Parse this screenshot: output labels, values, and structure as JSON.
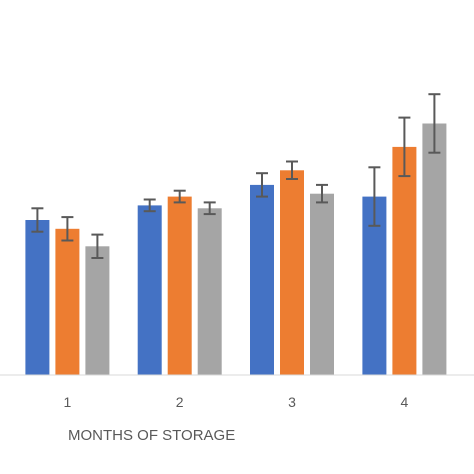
{
  "chart_data": {
    "type": "bar",
    "title": "",
    "xlabel": "MONTHS OF STORAGE",
    "ylabel": "",
    "categories": [
      "1",
      "2",
      "3",
      "4"
    ],
    "ylim": [
      0,
      100
    ],
    "grid": false,
    "legend": "none visible",
    "series": [
      {
        "color": "#4472C4",
        "values": [
          53,
          58,
          65,
          61
        ],
        "errors": [
          4,
          2,
          4,
          10
        ]
      },
      {
        "color": "#ED7D31",
        "values": [
          50,
          61,
          70,
          78
        ],
        "errors": [
          4,
          2,
          3,
          10
        ]
      },
      {
        "color": "#A5A5A5",
        "values": [
          44,
          57,
          62,
          86
        ],
        "errors": [
          4,
          2,
          3,
          10
        ]
      }
    ],
    "error_bar_color": "#595959",
    "axis_color": "#D9D9D9",
    "visible_x_range": [
      0.4,
      4.62
    ]
  }
}
